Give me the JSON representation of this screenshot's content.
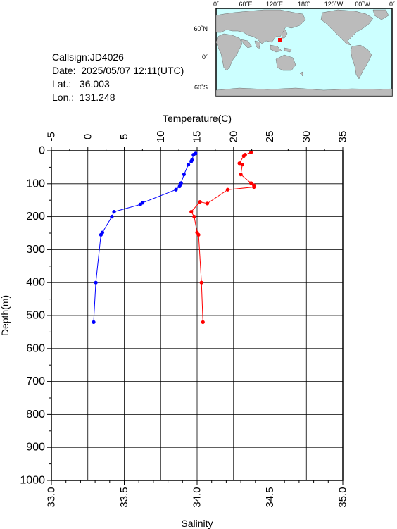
{
  "info": {
    "callsign": "Callsign:JD4026",
    "date": "Date:  2025/05/07 12:11(UTC)",
    "lat": "Lat.:   36.003",
    "lon": "Lon.:  131.248"
  },
  "map": {
    "top_labels": [
      "0˚",
      "60˚E",
      "120˚E",
      "180˚",
      "120˚W",
      "60˚W",
      "0˚"
    ],
    "lat_labels": [
      "60˚N",
      "0˚",
      "60˚S"
    ],
    "ocean_color": "#ccffff",
    "land_color": "#bbbbbb",
    "marker_color": "#ff0000"
  },
  "chart_data": {
    "type": "line",
    "top_axis_label": "Temperature(C)",
    "bottom_axis_label": "Salinity",
    "y_axis_label": "Depth(m)",
    "temperature_range": [
      -5,
      35
    ],
    "salinity_range": [
      33.0,
      35.0
    ],
    "depth_range": [
      0,
      1000
    ],
    "depth_inverted": true,
    "grid": true,
    "temperature_ticks": [
      "-5",
      "0",
      "5",
      "10",
      "15",
      "20",
      "25",
      "30",
      "35"
    ],
    "salinity_ticks": [
      "33.0",
      "33.5",
      "34.0",
      "34.5",
      "35.0"
    ],
    "depth_ticks": [
      "0",
      "100",
      "200",
      "300",
      "400",
      "500",
      "600",
      "700",
      "800",
      "900",
      "1000"
    ],
    "series": [
      {
        "quantity": "temperature",
        "color": "#0000ff",
        "points": [
          {
            "depth": 8,
            "value": 14.8
          },
          {
            "depth": 12,
            "value": 14.5
          },
          {
            "depth": 28,
            "value": 14.3
          },
          {
            "depth": 32,
            "value": 14.2
          },
          {
            "depth": 42,
            "value": 13.8
          },
          {
            "depth": 72,
            "value": 13.2
          },
          {
            "depth": 98,
            "value": 12.8
          },
          {
            "depth": 102,
            "value": 12.7
          },
          {
            "depth": 108,
            "value": 12.6
          },
          {
            "depth": 118,
            "value": 12.1
          },
          {
            "depth": 158,
            "value": 7.5
          },
          {
            "depth": 163,
            "value": 7.2
          },
          {
            "depth": 185,
            "value": 3.6
          },
          {
            "depth": 200,
            "value": 3.3
          },
          {
            "depth": 248,
            "value": 2.0
          },
          {
            "depth": 255,
            "value": 1.8
          },
          {
            "depth": 400,
            "value": 1.1
          },
          {
            "depth": 520,
            "value": 0.8
          }
        ]
      },
      {
        "quantity": "salinity",
        "color": "#ff0000",
        "points": [
          {
            "depth": 5,
            "value": 34.37
          },
          {
            "depth": 12,
            "value": 34.33
          },
          {
            "depth": 16,
            "value": 34.32
          },
          {
            "depth": 38,
            "value": 34.29
          },
          {
            "depth": 42,
            "value": 34.31
          },
          {
            "depth": 72,
            "value": 34.3
          },
          {
            "depth": 98,
            "value": 34.37
          },
          {
            "depth": 105,
            "value": 34.39
          },
          {
            "depth": 110,
            "value": 34.39
          },
          {
            "depth": 118,
            "value": 34.21
          },
          {
            "depth": 160,
            "value": 34.07
          },
          {
            "depth": 155,
            "value": 34.02
          },
          {
            "depth": 185,
            "value": 33.96
          },
          {
            "depth": 200,
            "value": 33.98
          },
          {
            "depth": 248,
            "value": 34.0
          },
          {
            "depth": 255,
            "value": 34.01
          },
          {
            "depth": 400,
            "value": 34.03
          },
          {
            "depth": 520,
            "value": 34.04
          }
        ]
      }
    ]
  }
}
